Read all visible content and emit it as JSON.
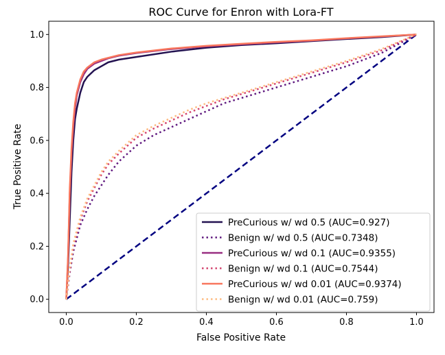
{
  "chart_data": {
    "type": "line",
    "title": "ROC Curve for Enron with Lora-FT",
    "xlabel": "False Positive Rate",
    "ylabel": "True Positive Rate",
    "xlim": [
      -0.05,
      1.05
    ],
    "ylim": [
      -0.05,
      1.05
    ],
    "xticks": [
      0.0,
      0.2,
      0.4,
      0.6,
      0.8,
      1.0
    ],
    "yticks": [
      0.0,
      0.2,
      0.4,
      0.6,
      0.8,
      1.0
    ],
    "xtick_labels": [
      "0.0",
      "0.2",
      "0.4",
      "0.6",
      "0.8",
      "1.0"
    ],
    "ytick_labels": [
      "0.0",
      "0.2",
      "0.4",
      "0.6",
      "0.8",
      "1.0"
    ],
    "grid": false,
    "legend_position": "lower-right",
    "diagonal": {
      "x": [
        0,
        1
      ],
      "y": [
        0,
        1
      ],
      "color": "#000080",
      "dash": "dashed"
    },
    "series": [
      {
        "name": "PreCurious w/ wd 0.5 (AUC=0.927)",
        "style": "solid",
        "color": "#221150",
        "x": [
          0,
          0.005,
          0.01,
          0.015,
          0.02,
          0.025,
          0.03,
          0.04,
          0.05,
          0.06,
          0.08,
          0.1,
          0.12,
          0.15,
          0.2,
          0.3,
          0.4,
          0.5,
          0.6,
          0.7,
          0.8,
          0.9,
          1.0
        ],
        "y": [
          0,
          0.12,
          0.3,
          0.48,
          0.6,
          0.68,
          0.72,
          0.78,
          0.82,
          0.84,
          0.865,
          0.88,
          0.895,
          0.905,
          0.915,
          0.935,
          0.95,
          0.96,
          0.967,
          0.975,
          0.983,
          0.99,
          1.0
        ]
      },
      {
        "name": "Benign w/ wd 0.5 (AUC=0.7348)",
        "style": "dotted",
        "color": "#5f187f",
        "x": [
          0,
          0.01,
          0.02,
          0.04,
          0.06,
          0.08,
          0.1,
          0.12,
          0.15,
          0.2,
          0.25,
          0.3,
          0.35,
          0.4,
          0.45,
          0.5,
          0.6,
          0.7,
          0.8,
          0.9,
          1.0
        ],
        "y": [
          0,
          0.1,
          0.18,
          0.28,
          0.34,
          0.39,
          0.43,
          0.47,
          0.52,
          0.58,
          0.62,
          0.65,
          0.68,
          0.71,
          0.74,
          0.76,
          0.8,
          0.84,
          0.88,
          0.93,
          1.0
        ]
      },
      {
        "name": "PreCurious w/ wd 0.1 (AUC=0.9355)",
        "style": "solid",
        "color": "#982d80",
        "x": [
          0,
          0.005,
          0.01,
          0.015,
          0.02,
          0.025,
          0.03,
          0.04,
          0.05,
          0.06,
          0.08,
          0.1,
          0.12,
          0.15,
          0.2,
          0.3,
          0.4,
          0.5,
          0.6,
          0.7,
          0.8,
          0.9,
          1.0
        ],
        "y": [
          0,
          0.15,
          0.4,
          0.55,
          0.65,
          0.72,
          0.77,
          0.82,
          0.85,
          0.87,
          0.89,
          0.9,
          0.91,
          0.92,
          0.93,
          0.945,
          0.955,
          0.963,
          0.97,
          0.977,
          0.985,
          0.992,
          1.0
        ]
      },
      {
        "name": "Benign w/ wd 0.1 (AUC=0.7544)",
        "style": "dotted",
        "color": "#d3436e",
        "x": [
          0,
          0.01,
          0.02,
          0.04,
          0.06,
          0.08,
          0.1,
          0.12,
          0.15,
          0.2,
          0.25,
          0.3,
          0.35,
          0.4,
          0.45,
          0.5,
          0.6,
          0.7,
          0.8,
          0.9,
          1.0
        ],
        "y": [
          0,
          0.11,
          0.2,
          0.3,
          0.37,
          0.42,
          0.47,
          0.51,
          0.55,
          0.61,
          0.645,
          0.675,
          0.705,
          0.73,
          0.755,
          0.775,
          0.815,
          0.855,
          0.895,
          0.94,
          1.0
        ]
      },
      {
        "name": "PreCurious w/ wd 0.01 (AUC=0.9374)",
        "style": "solid",
        "color": "#f8765c",
        "x": [
          0,
          0.005,
          0.01,
          0.015,
          0.02,
          0.025,
          0.03,
          0.04,
          0.05,
          0.06,
          0.08,
          0.1,
          0.12,
          0.15,
          0.2,
          0.3,
          0.4,
          0.5,
          0.6,
          0.7,
          0.8,
          0.9,
          1.0
        ],
        "y": [
          0,
          0.16,
          0.42,
          0.57,
          0.67,
          0.74,
          0.78,
          0.83,
          0.86,
          0.875,
          0.895,
          0.905,
          0.912,
          0.922,
          0.932,
          0.947,
          0.957,
          0.965,
          0.972,
          0.978,
          0.986,
          0.993,
          1.0
        ]
      },
      {
        "name": "Benign w/ wd 0.01 (AUC=0.759)",
        "style": "dotted",
        "color": "#febb81",
        "x": [
          0,
          0.01,
          0.02,
          0.04,
          0.06,
          0.08,
          0.1,
          0.12,
          0.15,
          0.2,
          0.25,
          0.3,
          0.35,
          0.4,
          0.45,
          0.5,
          0.6,
          0.7,
          0.8,
          0.9,
          1.0
        ],
        "y": [
          0,
          0.12,
          0.21,
          0.31,
          0.38,
          0.43,
          0.48,
          0.52,
          0.56,
          0.62,
          0.655,
          0.685,
          0.715,
          0.74,
          0.76,
          0.78,
          0.82,
          0.86,
          0.9,
          0.945,
          1.0
        ]
      }
    ]
  }
}
